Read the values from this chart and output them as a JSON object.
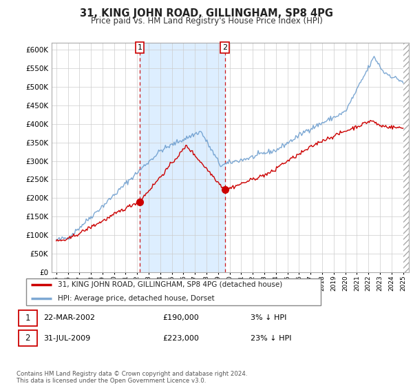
{
  "title": "31, KING JOHN ROAD, GILLINGHAM, SP8 4PG",
  "subtitle": "Price paid vs. HM Land Registry's House Price Index (HPI)",
  "red_label": "31, KING JOHN ROAD, GILLINGHAM, SP8 4PG (detached house)",
  "blue_label": "HPI: Average price, detached house, Dorset",
  "transaction1_date": "22-MAR-2002",
  "transaction1_price": "£190,000",
  "transaction1_hpi": "3% ↓ HPI",
  "transaction2_date": "31-JUL-2009",
  "transaction2_price": "£223,000",
  "transaction2_hpi": "23% ↓ HPI",
  "footer": "Contains HM Land Registry data © Crown copyright and database right 2024.\nThis data is licensed under the Open Government Licence v3.0.",
  "ylim": [
    0,
    620000
  ],
  "background_color": "#ffffff",
  "grid_color": "#cccccc",
  "red_color": "#cc0000",
  "blue_color": "#6699cc",
  "shade_color": "#ddeeff",
  "vline_color": "#cc0000",
  "marker1_x": 2002.22,
  "marker1_y": 190000,
  "marker2_x": 2009.58,
  "marker2_y": 223000,
  "xmin": 1995.0,
  "xmax": 2025.0
}
